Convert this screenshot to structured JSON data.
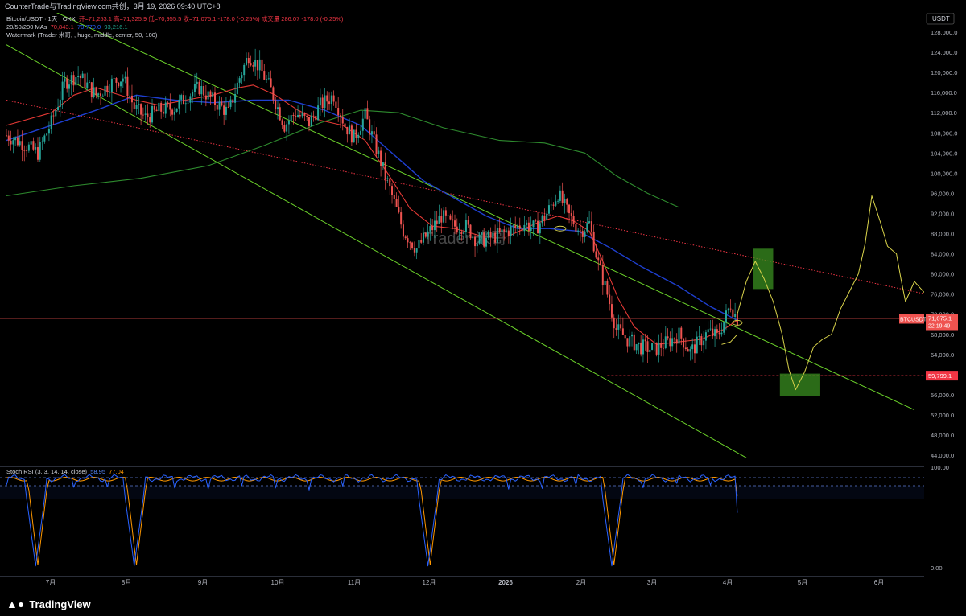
{
  "window": {
    "title": "CounterTrade与TradingView.com共创，3月 19, 2026 09:40 UTC+8"
  },
  "legend": {
    "symbol": "Bitcoin/USDT · 1天 · OKX",
    "ohlc": "开=71,253.1  高=71,325.9  低=70,955.5  收=71,075.1  -178.0 (-0.25%)  成交量 286.07  -178.0 (-0.25%)",
    "ma_label": "20/50/200 MAs",
    "ma20": "70,843.1",
    "ma50": "70,770.0",
    "ma200": "93,216.1",
    "watermark": "Watermark (Trader 米哥, , huge, middle, center, 50, 100)",
    "stoch_label": "Stoch RSI (3, 3, 14, 14, close)",
    "stoch_k": "58.95",
    "stoch_d": "77.04"
  },
  "watermark_text": "Trader 米哥",
  "currency_badge": "USDT",
  "price_tag": {
    "symbol": "BTCUSDT",
    "price": "71,075.1",
    "countdown": "22:19:49"
  },
  "support_tag": "59,799.1",
  "stoch_axis": {
    "top": "100.00",
    "bottom": "0.00"
  },
  "footer": {
    "brand": "TradingView"
  },
  "colors": {
    "background": "#000000",
    "up": "#26a69a",
    "down": "#ef5350",
    "ma20": "#e53935",
    "ma50": "#1e3fd0",
    "ma200": "#2e8b2e",
    "channel": "#6bd12a",
    "projection": "#d8d24a",
    "trend": "#f23645",
    "stoch_k": "#2962ff",
    "stoch_d": "#ff9800"
  },
  "chart_data": {
    "type": "candlestick",
    "symbol": "Bitcoin/USDT",
    "interval": "1天",
    "exchange": "OKX",
    "y_axis": {
      "ticks": [
        128000,
        124000,
        120000,
        116000,
        112000,
        108000,
        104000,
        100000,
        96000,
        92000,
        88000,
        84000,
        80000,
        76000,
        72000,
        68000,
        64000,
        60000,
        56000,
        52000,
        48000,
        44000
      ],
      "tick_labels": [
        "128,000.0",
        "124,000.0",
        "120,000.0",
        "116,000.0",
        "112,000.0",
        "108,000.0",
        "104,000.0",
        "100,000.0",
        "96,000.0",
        "92,000.0",
        "88,000.0",
        "84,000.0",
        "80,000.0",
        "76,000.0",
        "72,000.0",
        "68,000.0",
        "64,000.0",
        "60,000.0",
        "56,000.0",
        "52,000.0",
        "48,000.0",
        "44,000.0"
      ]
    },
    "x_axis": {
      "labels": [
        "7月",
        "8月",
        "9月",
        "10月",
        "11月",
        "12月",
        "2026",
        "2月",
        "3月",
        "4月",
        "5月",
        "6月"
      ]
    },
    "close_path": [
      [
        0,
        107500
      ],
      [
        7,
        106000
      ],
      [
        14,
        104000
      ],
      [
        20,
        110000
      ],
      [
        26,
        118000
      ],
      [
        32,
        119500
      ],
      [
        40,
        115500
      ],
      [
        47,
        118000
      ],
      [
        52,
        119000
      ],
      [
        57,
        113000
      ],
      [
        62,
        111000
      ],
      [
        68,
        112500
      ],
      [
        75,
        113000
      ],
      [
        81,
        115500
      ],
      [
        86,
        117000
      ],
      [
        92,
        114500
      ],
      [
        99,
        112000
      ],
      [
        104,
        119000
      ],
      [
        108,
        123500
      ],
      [
        113,
        121000
      ],
      [
        118,
        116500
      ],
      [
        124,
        109500
      ],
      [
        129,
        112000
      ],
      [
        135,
        110000
      ],
      [
        140,
        113500
      ],
      [
        146,
        115500
      ],
      [
        151,
        109500
      ],
      [
        155,
        107000
      ],
      [
        160,
        111500
      ],
      [
        166,
        103500
      ],
      [
        172,
        95500
      ],
      [
        177,
        88500
      ],
      [
        183,
        85000
      ],
      [
        188,
        88000
      ],
      [
        194,
        91500
      ],
      [
        199,
        89500
      ],
      [
        205,
        89500
      ],
      [
        210,
        86500
      ],
      [
        215,
        87000
      ],
      [
        221,
        88000
      ],
      [
        226,
        89000
      ],
      [
        231,
        90000
      ],
      [
        236,
        89000
      ],
      [
        241,
        92000
      ],
      [
        246,
        96000
      ],
      [
        251,
        91500
      ],
      [
        256,
        88500
      ],
      [
        260,
        90000
      ],
      [
        264,
        82000
      ],
      [
        268,
        76000
      ],
      [
        272,
        69000
      ],
      [
        277,
        67000
      ],
      [
        283,
        65500
      ],
      [
        289,
        65000
      ],
      [
        295,
        66500
      ],
      [
        300,
        68000
      ],
      [
        305,
        64500
      ],
      [
        309,
        66500
      ],
      [
        313,
        68500
      ],
      [
        317,
        67500
      ],
      [
        320,
        70500
      ],
      [
        323,
        74000
      ],
      [
        326,
        71000
      ]
    ],
    "ma20_path": [
      [
        0,
        109500
      ],
      [
        20,
        112000
      ],
      [
        30,
        115500
      ],
      [
        40,
        117000
      ],
      [
        47,
        116000
      ],
      [
        58,
        114500
      ],
      [
        68,
        113500
      ],
      [
        80,
        114500
      ],
      [
        92,
        115500
      ],
      [
        104,
        117000
      ],
      [
        110,
        117500
      ],
      [
        120,
        115500
      ],
      [
        130,
        112500
      ],
      [
        140,
        110500
      ],
      [
        150,
        109500
      ],
      [
        160,
        106500
      ],
      [
        170,
        100000
      ],
      [
        180,
        93000
      ],
      [
        190,
        89500
      ],
      [
        200,
        89000
      ],
      [
        212,
        87500
      ],
      [
        224,
        87500
      ],
      [
        236,
        90000
      ],
      [
        246,
        91500
      ],
      [
        253,
        90500
      ],
      [
        260,
        88500
      ],
      [
        266,
        82500
      ],
      [
        273,
        75000
      ],
      [
        280,
        69500
      ],
      [
        290,
        66000
      ],
      [
        300,
        66500
      ],
      [
        310,
        67000
      ],
      [
        320,
        69000
      ],
      [
        326,
        70800
      ]
    ],
    "ma50_path": [
      [
        0,
        106500
      ],
      [
        20,
        109500
      ],
      [
        40,
        112500
      ],
      [
        58,
        115500
      ],
      [
        75,
        114500
      ],
      [
        92,
        114000
      ],
      [
        110,
        114500
      ],
      [
        126,
        114500
      ],
      [
        142,
        112500
      ],
      [
        158,
        109500
      ],
      [
        172,
        104000
      ],
      [
        186,
        98500
      ],
      [
        200,
        95000
      ],
      [
        214,
        91500
      ],
      [
        228,
        89000
      ],
      [
        242,
        89000
      ],
      [
        255,
        88500
      ],
      [
        268,
        85500
      ],
      [
        283,
        81500
      ],
      [
        300,
        77500
      ],
      [
        314,
        73500
      ],
      [
        326,
        70800
      ]
    ],
    "ma200_path": [
      [
        0,
        95500
      ],
      [
        30,
        97500
      ],
      [
        60,
        99000
      ],
      [
        90,
        101500
      ],
      [
        115,
        105500
      ],
      [
        140,
        110000
      ],
      [
        158,
        112500
      ],
      [
        175,
        112000
      ],
      [
        195,
        109000
      ],
      [
        220,
        106500
      ],
      [
        240,
        106000
      ],
      [
        258,
        104000
      ],
      [
        272,
        99500
      ],
      [
        286,
        96000
      ],
      [
        300,
        93200
      ]
    ],
    "channel_lines": [
      {
        "name": "upper",
        "from": [
          0,
          136500
        ],
        "to": [
          405,
          53000
        ]
      },
      {
        "name": "lower",
        "from": [
          0,
          125500
        ],
        "to": [
          330,
          43500
        ]
      }
    ],
    "trend_line": {
      "from": [
        0,
        114500
      ],
      "to": [
        410,
        76000
      ]
    },
    "support_level": 59799.1,
    "last_price": 71075.1,
    "projection_path": [
      [
        326,
        72000
      ],
      [
        330,
        78500
      ],
      [
        334,
        82500
      ],
      [
        338,
        79000
      ],
      [
        342,
        74500
      ],
      [
        346,
        68000
      ],
      [
        349,
        61000
      ],
      [
        352,
        57000
      ],
      [
        356,
        60500
      ],
      [
        360,
        65500
      ],
      [
        364,
        67000
      ],
      [
        368,
        68000
      ],
      [
        372,
        73000
      ],
      [
        376,
        76500
      ],
      [
        380,
        80000
      ],
      [
        383,
        86000
      ],
      [
        386,
        95500
      ],
      [
        390,
        90000
      ],
      [
        393,
        85500
      ],
      [
        397,
        84000
      ],
      [
        399,
        79000
      ],
      [
        401,
        74500
      ],
      [
        405,
        78500
      ],
      [
        407,
        77500
      ],
      [
        410,
        76000
      ]
    ],
    "projection_start_curve": [
      [
        319,
        66000
      ],
      [
        323,
        66500
      ],
      [
        326,
        68000
      ]
    ],
    "highlight_zones": [
      {
        "from_day": 333,
        "to_day": 342,
        "low": 77000,
        "high": 85000
      },
      {
        "from_day": 345,
        "to_day": 363,
        "low": 55800,
        "high": 60200
      }
    ],
    "stoch_rsi": {
      "k": 58.95,
      "d": 77.04,
      "bands": [
        80,
        20
      ],
      "deep_dips_days": [
        13,
        57,
        188,
        270
      ]
    }
  }
}
